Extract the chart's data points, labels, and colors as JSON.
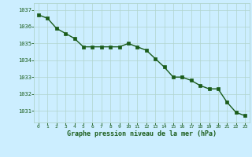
{
  "x": [
    0,
    1,
    2,
    3,
    4,
    5,
    6,
    7,
    8,
    9,
    10,
    11,
    12,
    13,
    14,
    15,
    16,
    17,
    18,
    19,
    20,
    21,
    22,
    23
  ],
  "y": [
    1036.7,
    1036.5,
    1035.9,
    1035.6,
    1035.3,
    1034.8,
    1034.8,
    1034.8,
    1034.8,
    1034.8,
    1035.0,
    1034.8,
    1034.6,
    1034.1,
    1033.6,
    1033.0,
    1033.0,
    1032.8,
    1032.5,
    1032.3,
    1032.3,
    1031.5,
    1030.9,
    1030.7
  ],
  "line_color": "#1a5c1a",
  "marker_color": "#1a5c1a",
  "bg_color": "#cceeff",
  "grid_color": "#b0d4cc",
  "xlabel": "Graphe pression niveau de la mer (hPa)",
  "xlabel_color": "#1a5c1a",
  "tick_color": "#1a5c1a",
  "ylim_min": 1030.3,
  "ylim_max": 1037.4,
  "yticks": [
    1031,
    1032,
    1033,
    1034,
    1035,
    1036,
    1037
  ],
  "xticks": [
    0,
    1,
    2,
    3,
    4,
    5,
    6,
    7,
    8,
    9,
    10,
    11,
    12,
    13,
    14,
    15,
    16,
    17,
    18,
    19,
    20,
    21,
    22,
    23
  ],
  "marker_size": 2.8,
  "line_width": 1.0
}
